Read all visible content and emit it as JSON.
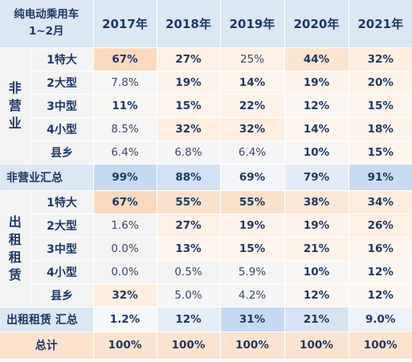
{
  "header": {
    "corner_line1": "纯电动乘用车",
    "corner_line2": "1~2月",
    "years": [
      "2017年",
      "2018年",
      "2019年",
      "2020年",
      "2021年"
    ]
  },
  "groups": {
    "non_operating": "非营业",
    "rental": "出租租赁"
  },
  "rows": [
    {
      "label": "1特大",
      "values": [
        "67%",
        "27%",
        "25%",
        "44%",
        "32%"
      ],
      "bold": [
        true,
        true,
        false,
        true,
        true
      ],
      "colors": [
        "#fbd9bd",
        "#fdf0e4",
        "#fdf1e6",
        "#fce4cf",
        "#fdeee0"
      ]
    },
    {
      "label": "2大型",
      "values": [
        "7.8%",
        "19%",
        "14%",
        "19%",
        "20%"
      ],
      "bold": [
        false,
        true,
        true,
        true,
        true
      ],
      "colors": [
        "#f6f6f6",
        "#fdf3ea",
        "#fdf5ee",
        "#fdf3ea",
        "#fdf2e8"
      ]
    },
    {
      "label": "3中型",
      "values": [
        "11%",
        "15%",
        "22%",
        "12%",
        "15%"
      ],
      "bold": [
        true,
        true,
        true,
        true,
        true
      ],
      "colors": [
        "#f8f6f3",
        "#fdf4ec",
        "#fdf2e8",
        "#fbf6f1",
        "#fdf4ec"
      ]
    },
    {
      "label": "4小型",
      "values": [
        "8.5%",
        "32%",
        "32%",
        "14%",
        "18%"
      ],
      "bold": [
        false,
        true,
        true,
        true,
        true
      ],
      "colors": [
        "#f6f6f6",
        "#fdeee0",
        "#fdeee0",
        "#fdf5ee",
        "#fdf3ea"
      ]
    },
    {
      "label": "县乡",
      "values": [
        "6.4%",
        "6.8%",
        "6.4%",
        "10%",
        "15%"
      ],
      "bold": [
        false,
        false,
        false,
        true,
        true
      ],
      "colors": [
        "#f5f5f5",
        "#f5f5f5",
        "#f5f5f5",
        "#f7f6f4",
        "#fdf4ec"
      ]
    }
  ],
  "non_operating_total": {
    "label": "非营业汇总",
    "values": [
      "99%",
      "88%",
      "69%",
      "79%",
      "91%"
    ],
    "colors": [
      "#c5d9f1",
      "#d2e1f3",
      "#f2f4f8",
      "#e3ecf6",
      "#c9dbf1"
    ]
  },
  "rental_rows": [
    {
      "label": "1特大",
      "values": [
        "67%",
        "55%",
        "55%",
        "38%",
        "34%"
      ],
      "bold": [
        true,
        true,
        true,
        true,
        true
      ],
      "colors": [
        "#fbd9bd",
        "#fce1ca",
        "#fce1ca",
        "#fde8d6",
        "#fdebdb"
      ]
    },
    {
      "label": "2大型",
      "values": [
        "1.6%",
        "27%",
        "19%",
        "19%",
        "26%"
      ],
      "bold": [
        false,
        true,
        true,
        true,
        true
      ],
      "colors": [
        "#f3f3f3",
        "#fdf0e4",
        "#fdf3ea",
        "#fdf3ea",
        "#fdf0e4"
      ]
    },
    {
      "label": "3中型",
      "values": [
        "0.0%",
        "13%",
        "15%",
        "21%",
        "16%"
      ],
      "bold": [
        false,
        true,
        true,
        true,
        true
      ],
      "colors": [
        "#f3f3f3",
        "#fdf5ee",
        "#fdf4ec",
        "#fdf2e8",
        "#fdf4ec"
      ]
    },
    {
      "label": "4小型",
      "values": [
        "0.0%",
        "0.5%",
        "5.9%",
        "10%",
        "12%"
      ],
      "bold": [
        false,
        false,
        false,
        true,
        true
      ],
      "colors": [
        "#f3f3f3",
        "#f3f3f3",
        "#f5f5f5",
        "#f7f6f4",
        "#fbf6f1"
      ]
    },
    {
      "label": "县乡",
      "values": [
        "32%",
        "5.0%",
        "4.2%",
        "12%",
        "12%"
      ],
      "bold": [
        true,
        false,
        false,
        true,
        true
      ],
      "colors": [
        "#fdeee0",
        "#f5f5f5",
        "#f4f4f4",
        "#fbf6f1",
        "#fbf6f1"
      ]
    }
  ],
  "rental_total": {
    "label": "出租租赁 汇总",
    "values": [
      "1.2%",
      "12%",
      "31%",
      "21%",
      "9.0%"
    ],
    "bold": [
      true,
      true,
      true,
      true,
      true
    ],
    "colors": [
      "#f6f7f9",
      "#e5edf6",
      "#c5d9f1",
      "#d6e3f3",
      "#eef2f8"
    ]
  },
  "grand_total": {
    "label": "总计",
    "values": [
      "100%",
      "100%",
      "100%",
      "100%",
      "100%"
    ]
  }
}
